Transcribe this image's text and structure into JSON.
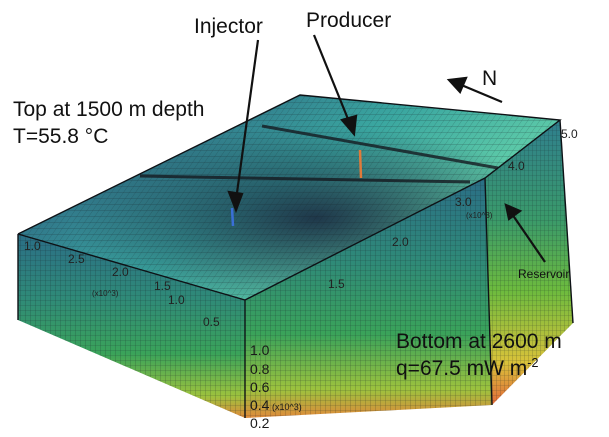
{
  "labels": {
    "injector": "Injector",
    "producer": "Producer",
    "north": "N",
    "top_depth": "Top at 1500 m depth",
    "top_temp": "T=55.8 °C",
    "reservoir": "Reservoir",
    "bottom_depth": "Bottom at 2600 m",
    "heat_flow_prefix": "q=67.5 mW m",
    "heat_flow_exp": "-2"
  },
  "axis": {
    "x_ticks": [
      "1.0",
      "2.5",
      "2.0",
      "1.5",
      "1.0",
      "0.5"
    ],
    "x_unit": "(x10^3)",
    "right_ticks": [
      "5.0",
      "4.0",
      "3.0",
      "2.0",
      "1.5"
    ],
    "right_unit": "(x10^3)",
    "vertical_ticks": [
      "1.0",
      "0.8",
      "0.6",
      "0.4",
      "0.2"
    ],
    "vertical_unit": "(x10^3)"
  },
  "colors": {
    "background": "#ffffff",
    "grid": "#1a1f24",
    "model_top_dark": "#1e2f4a",
    "model_top_light": "#4fc3a8",
    "model_side_green": "#3fa86a",
    "model_bottom_warm": "#e8b040"
  }
}
